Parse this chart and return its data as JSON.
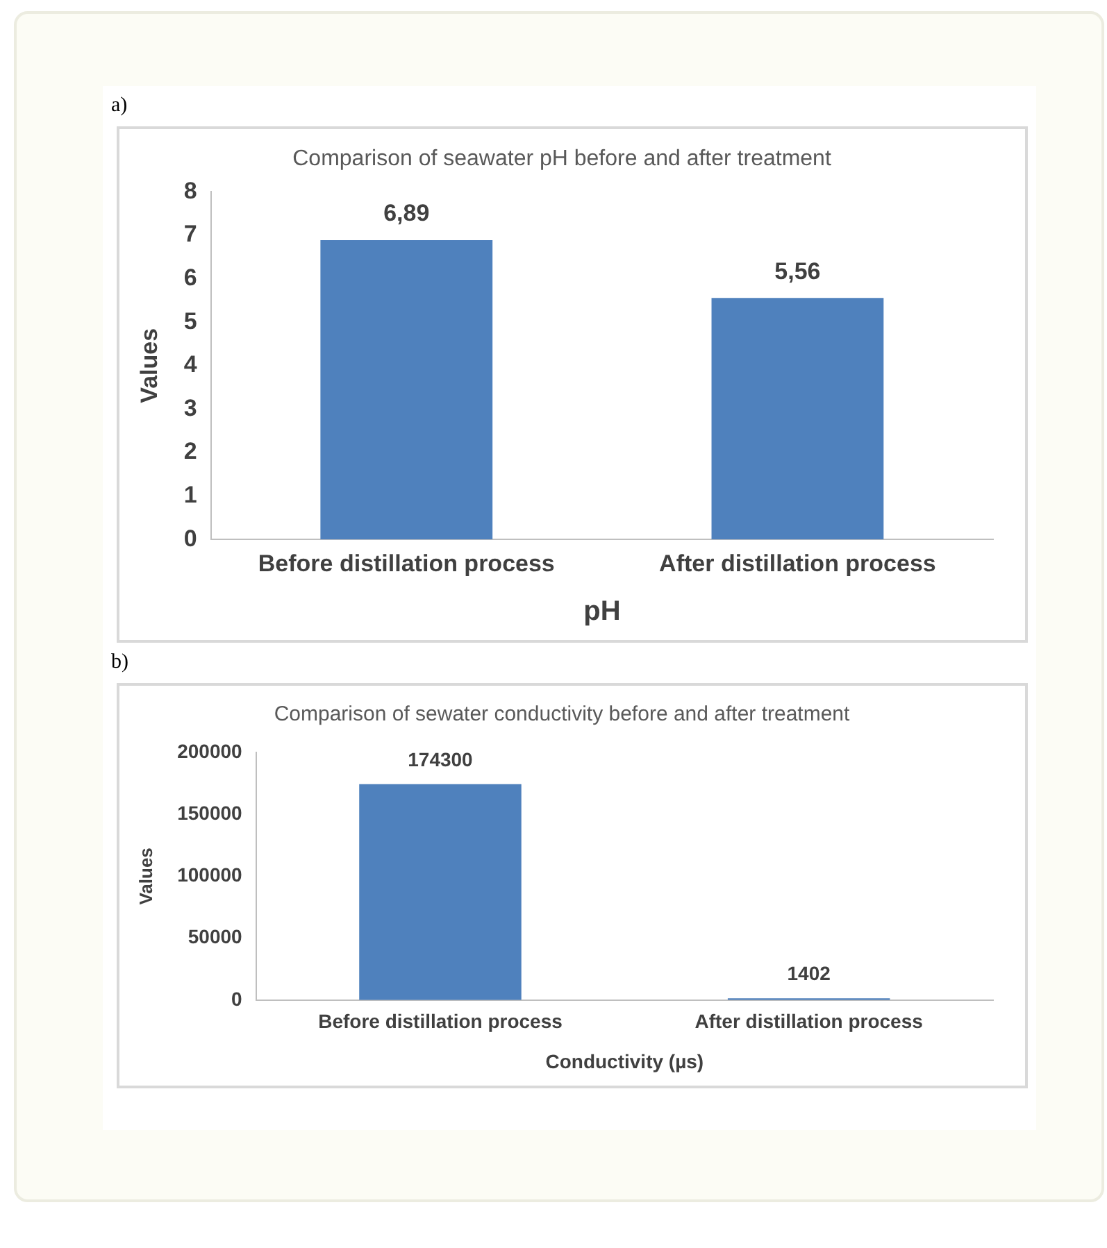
{
  "chart_data": [
    {
      "type": "bar",
      "title": "Comparison of seawater pH before and after treatment",
      "xlabel": "pH",
      "ylabel": "Values",
      "categories": [
        "Before distillation process",
        "After distillation process"
      ],
      "values": [
        6.89,
        5.56
      ],
      "value_labels": [
        "6,89",
        "5,56"
      ],
      "color": "#4f81bd",
      "ylim": [
        0,
        8
      ],
      "yticks": [
        0,
        1,
        2,
        3,
        4,
        5,
        6,
        7,
        8
      ],
      "annotations": [
        "a)"
      ]
    },
    {
      "type": "bar",
      "title": "Comparison of sewater conductivity before and after treatment",
      "xlabel": "Conductivity (µs)",
      "ylabel": "Values",
      "categories": [
        "Before distillation process",
        "After distillation process"
      ],
      "values": [
        174300,
        1402
      ],
      "data_labels": true,
      "color": "#4f81bd",
      "ylim": [
        0,
        200000
      ],
      "yticks": [
        0,
        50000,
        100000,
        150000,
        200000
      ],
      "annotations": [
        "b)"
      ]
    }
  ]
}
